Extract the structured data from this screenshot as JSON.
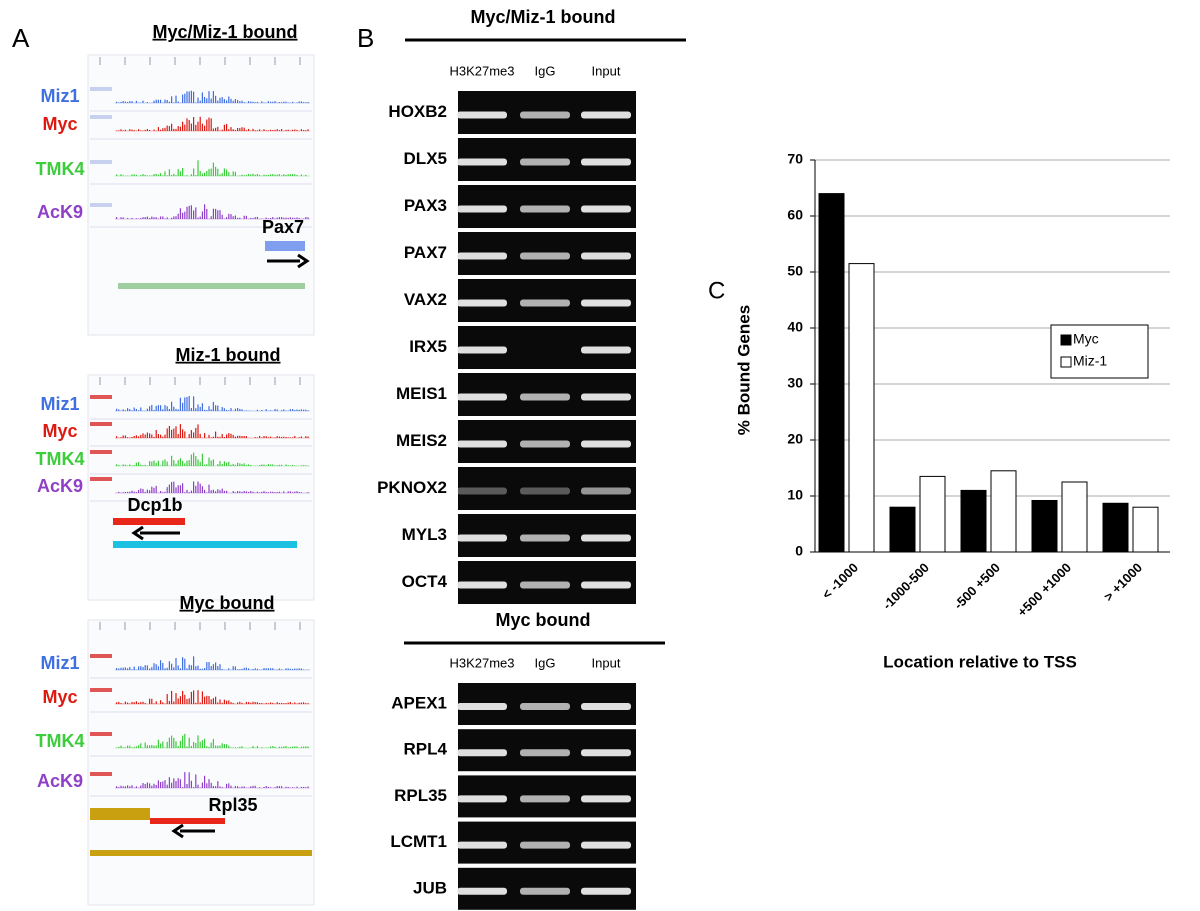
{
  "panel_a": {
    "label": "A",
    "sections": [
      {
        "title": "Myc/Miz-1 bound",
        "tracks": [
          "Miz1",
          "Myc",
          "TMK4",
          "AcK9"
        ],
        "gene": "Pax7"
      },
      {
        "title": "Miz-1 bound",
        "tracks": [
          "Miz1",
          "Myc",
          "TMK4",
          "AcK9"
        ],
        "gene": "Dcp1b"
      },
      {
        "title": "Myc bound",
        "tracks": [
          "Miz1",
          "Myc",
          "TMK4",
          "AcK9"
        ],
        "gene": "Rpl35"
      }
    ]
  },
  "panel_b": {
    "label": "B",
    "groups": [
      {
        "title": "Myc/Miz-1 bound",
        "columns": [
          "H3K27me3",
          "IgG",
          "Input"
        ],
        "genes": [
          "HOXB2",
          "DLX5",
          "PAX3",
          "PAX7",
          "VAX2",
          "IRX5",
          "MEIS1",
          "MEIS2",
          "PKNOX2",
          "MYL3",
          "OCT4"
        ]
      },
      {
        "title": "Myc bound",
        "columns": [
          "H3K27me3",
          "IgG",
          "Input"
        ],
        "genes": [
          "APEX1",
          "RPL4",
          "RPL35",
          "LCMT1",
          "JUB"
        ]
      }
    ]
  },
  "chart_data": {
    "type": "bar",
    "panel_label": "C",
    "categories": [
      "< -1000",
      "-1000-500",
      "-500 +500",
      "+500 +1000",
      "> +1000"
    ],
    "series": [
      {
        "name": "Myc",
        "color": "#000000",
        "values": [
          64,
          8,
          11,
          9.2,
          8.7
        ]
      },
      {
        "name": "Miz-1",
        "color": "#ffffff",
        "values": [
          51.5,
          13.5,
          14.5,
          12.5,
          8
        ]
      }
    ],
    "ylim": [
      0,
      70
    ],
    "yticks": [
      0,
      10,
      20,
      30,
      40,
      50,
      60,
      70
    ],
    "grid": true,
    "xlabel": "Location relative to TSS",
    "ylabel": "% Bound Genes",
    "legend": "upper right"
  }
}
